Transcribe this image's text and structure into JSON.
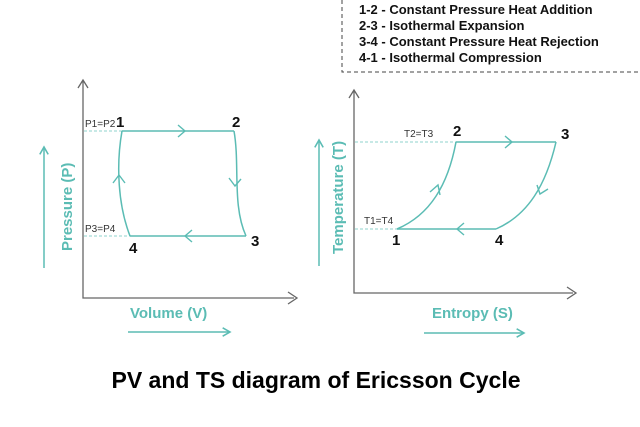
{
  "colors": {
    "curve": "#5bbcb4",
    "axis": "#666666",
    "text": "#111111",
    "dash": "#8fd3cd"
  },
  "legend": {
    "items": [
      "1-2 - Constant Pressure Heat Addition",
      "2-3 - Isothermal Expansion",
      "3-4 - Constant Pressure Heat Rejection",
      "4-1 - Isothermal Compression"
    ]
  },
  "pv": {
    "ylabel": "Pressure (P)",
    "xlabel": "Volume (V)",
    "p12_label": "P1=P2",
    "p34_label": "P3=P4",
    "points": {
      "p1": "1",
      "p2": "2",
      "p3": "3",
      "p4": "4"
    }
  },
  "ts": {
    "ylabel": "Temperature (T)",
    "xlabel": "Entropy (S)",
    "t23_label": "T2=T3",
    "t14_label": "T1=T4",
    "points": {
      "p1": "1",
      "p2": "2",
      "p3": "3",
      "p4": "4"
    }
  },
  "title": "PV and TS diagram of Ericsson Cycle"
}
